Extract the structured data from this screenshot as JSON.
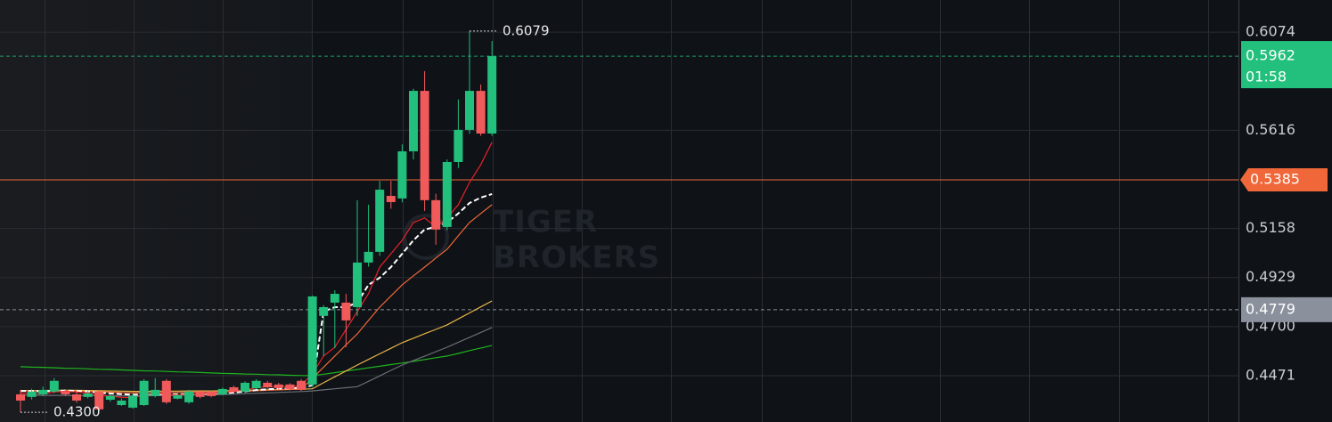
{
  "chart_data": {
    "type": "candlestick",
    "categories": [
      null,
      null,
      null,
      null,
      null,
      null,
      null,
      null,
      null,
      null,
      null,
      null,
      null,
      null,
      null,
      null,
      null,
      null,
      null,
      null,
      null,
      null,
      null,
      null,
      null,
      null,
      null,
      null,
      null,
      null,
      null,
      null,
      null,
      null,
      null,
      null,
      null,
      null,
      null,
      null,
      null,
      null,
      null
    ],
    "open": [
      0.4384,
      0.4372,
      0.4384,
      0.4397,
      0.4397,
      0.4384,
      0.4372,
      0.4397,
      0.4359,
      0.4334,
      0.4322,
      0.4334,
      0.4376,
      0.4447,
      0.4364,
      0.4347,
      0.4397,
      0.4397,
      0.4384,
      0.4417,
      0.4397,
      0.4413,
      0.4438,
      0.443,
      0.443,
      0.4447,
      0.443,
      0.475,
      0.4812,
      0.4812,
      0.4791,
      0.4999,
      0.5049,
      0.531,
      0.5298,
      0.5518,
      0.58,
      0.529,
      0.5165,
      0.5468,
      0.5618,
      0.58,
      0.5601
    ],
    "high": [
      0.4405,
      0.441,
      0.442,
      0.446,
      0.4405,
      0.4397,
      0.44,
      0.4405,
      0.4385,
      0.4365,
      0.4385,
      0.4455,
      0.446,
      0.4455,
      0.439,
      0.4405,
      0.4405,
      0.44,
      0.4415,
      0.4425,
      0.4445,
      0.4455,
      0.4447,
      0.4438,
      0.4436,
      0.4455,
      0.4845,
      0.48,
      0.487,
      0.4853,
      0.529,
      0.5269,
      0.538,
      0.538,
      0.555,
      0.581,
      0.5892,
      0.532,
      0.548,
      0.576,
      0.6079,
      0.583,
      0.6033
    ],
    "low": [
      0.43,
      0.436,
      0.4376,
      0.439,
      0.4376,
      0.4345,
      0.4365,
      0.4305,
      0.435,
      0.433,
      0.4318,
      0.433,
      0.437,
      0.434,
      0.436,
      0.434,
      0.4365,
      0.437,
      0.438,
      0.4392,
      0.439,
      0.4408,
      0.441,
      0.4405,
      0.4402,
      0.44,
      0.442,
      0.4563,
      0.46,
      0.4604,
      0.475,
      0.498,
      0.503,
      0.525,
      0.528,
      0.548,
      0.524,
      0.5082,
      0.515,
      0.544,
      0.56,
      0.559,
      0.559
    ],
    "close": [
      0.4355,
      0.4397,
      0.4405,
      0.4447,
      0.4384,
      0.4355,
      0.4388,
      0.4314,
      0.4376,
      0.4355,
      0.4376,
      0.4447,
      0.4405,
      0.4347,
      0.438,
      0.4397,
      0.4372,
      0.4376,
      0.4409,
      0.4397,
      0.4438,
      0.4447,
      0.4417,
      0.4413,
      0.4409,
      0.4405,
      0.4841,
      0.4791,
      0.4853,
      0.4729,
      0.4999,
      0.5049,
      0.5339,
      0.5281,
      0.5518,
      0.58,
      0.529,
      0.5153,
      0.5468,
      0.5618,
      0.58,
      0.5601,
      0.5962
    ],
    "up_color": "#22c07c",
    "down_color": "#f05a5a",
    "lines": [
      {
        "color": "#1fb41f",
        "dashed": false,
        "values": [
          0.4513,
          0.4511,
          0.451,
          0.4508,
          0.4506,
          0.4505,
          0.4503,
          0.4501,
          0.45,
          0.4498,
          0.4496,
          0.4494,
          0.4493,
          0.4491,
          0.4489,
          0.4488,
          0.4486,
          0.4484,
          0.4482,
          0.4481,
          0.4479,
          0.4478,
          0.4476,
          0.4475,
          0.4473,
          0.4472,
          0.4471,
          0.4478,
          0.4485,
          0.4493,
          0.45,
          0.4508,
          0.4515,
          0.4523,
          0.453,
          0.4538,
          0.4546,
          0.4555,
          0.4563,
          0.4575,
          0.4588,
          0.46,
          0.4612
        ]
      },
      {
        "color": "#6b6e75",
        "dashed": false,
        "values": [
          0.438,
          0.438,
          0.4379,
          0.4379,
          0.4379,
          0.4378,
          0.4378,
          0.4378,
          0.4377,
          0.4377,
          0.4377,
          0.4377,
          0.4378,
          0.4378,
          0.4379,
          0.438,
          0.4381,
          0.4382,
          0.4383,
          0.4385,
          0.4387,
          0.4389,
          0.4391,
          0.4393,
          0.4395,
          0.4397,
          0.44,
          0.4405,
          0.441,
          0.4415,
          0.442,
          0.4445,
          0.447,
          0.4496,
          0.4521,
          0.4542,
          0.4562,
          0.4583,
          0.4604,
          0.4627,
          0.465,
          0.4673,
          0.4696
        ]
      },
      {
        "color": "#e8b64a",
        "dashed": false,
        "values": [
          0.4402,
          0.4402,
          0.4402,
          0.4403,
          0.4403,
          0.4403,
          0.4402,
          0.4401,
          0.44,
          0.4399,
          0.4398,
          0.4398,
          0.4399,
          0.4399,
          0.4399,
          0.44,
          0.44,
          0.44,
          0.4401,
          0.4402,
          0.4403,
          0.4404,
          0.4405,
          0.4406,
          0.4407,
          0.4408,
          0.441,
          0.4438,
          0.4466,
          0.4493,
          0.4521,
          0.4547,
          0.4573,
          0.4599,
          0.4625,
          0.4646,
          0.4667,
          0.4687,
          0.4708,
          0.4736,
          0.4764,
          0.4792,
          0.482
        ]
      },
      {
        "color": "#f0683a",
        "dashed": false,
        "values": [
          0.44,
          0.44,
          0.4399,
          0.44,
          0.44,
          0.4399,
          0.4398,
          0.4396,
          0.4394,
          0.4392,
          0.4391,
          0.4392,
          0.4393,
          0.4393,
          0.4393,
          0.4394,
          0.4395,
          0.4395,
          0.4396,
          0.4397,
          0.4399,
          0.4401,
          0.4403,
          0.4405,
          0.4407,
          0.4409,
          0.4459,
          0.4511,
          0.4563,
          0.4615,
          0.4666,
          0.4729,
          0.4791,
          0.4843,
          0.4895,
          0.4937,
          0.4978,
          0.502,
          0.5061,
          0.5124,
          0.5186,
          0.5228,
          0.5269
        ]
      },
      {
        "color": "#ffffff",
        "dashed": true,
        "values": [
          0.44,
          0.44,
          0.4398,
          0.44,
          0.4402,
          0.44,
          0.4398,
          0.4392,
          0.4388,
          0.4385,
          0.4382,
          0.4383,
          0.4385,
          0.4384,
          0.4384,
          0.4385,
          0.4386,
          0.4387,
          0.439,
          0.4392,
          0.4398,
          0.4404,
          0.4408,
          0.441,
          0.4412,
          0.4415,
          0.4426,
          0.477,
          0.4791,
          0.4791,
          0.4812,
          0.4895,
          0.4928,
          0.4978,
          0.504,
          0.5103,
          0.5153,
          0.5165,
          0.5186,
          0.5228,
          0.5277,
          0.5302,
          0.5319
        ]
      },
      {
        "color": "#e8222b",
        "dashed": false,
        "values": [
          0.439,
          0.4388,
          0.4386,
          0.4395,
          0.4398,
          0.4395,
          0.439,
          0.438,
          0.4375,
          0.437,
          0.4368,
          0.438,
          0.439,
          0.4385,
          0.438,
          0.4385,
          0.439,
          0.4388,
          0.4392,
          0.4398,
          0.4405,
          0.4415,
          0.442,
          0.4422,
          0.442,
          0.4425,
          0.448,
          0.4563,
          0.4604,
          0.4687,
          0.477,
          0.4854,
          0.4978,
          0.504,
          0.5103,
          0.5186,
          0.5207,
          0.5165,
          0.5207,
          0.5269,
          0.5373,
          0.5456,
          0.556
        ]
      }
    ],
    "ylim": [
      0.4255,
      0.6224
    ],
    "yticks": [
      0.6074,
      0.5616,
      0.5158,
      0.4929,
      {
        "value": 0.47,
        "label": "0.4700"
      },
      0.4471
    ],
    "grid": true,
    "last_price": {
      "value": 0.5962,
      "countdown": "01:58",
      "color": "#22c07c"
    },
    "price_lines": [
      {
        "value": 0.5385,
        "color": "#f0683a",
        "dashed": false
      },
      {
        "value": 0.4779,
        "color": "#8a909c",
        "dashed": true
      }
    ],
    "annotations": [
      {
        "value": 0.6079,
        "label": "0.6079"
      },
      {
        "value": 0.43,
        "label": "0.4300"
      }
    ],
    "watermark": [
      "TIGER",
      "BROKERS"
    ]
  }
}
